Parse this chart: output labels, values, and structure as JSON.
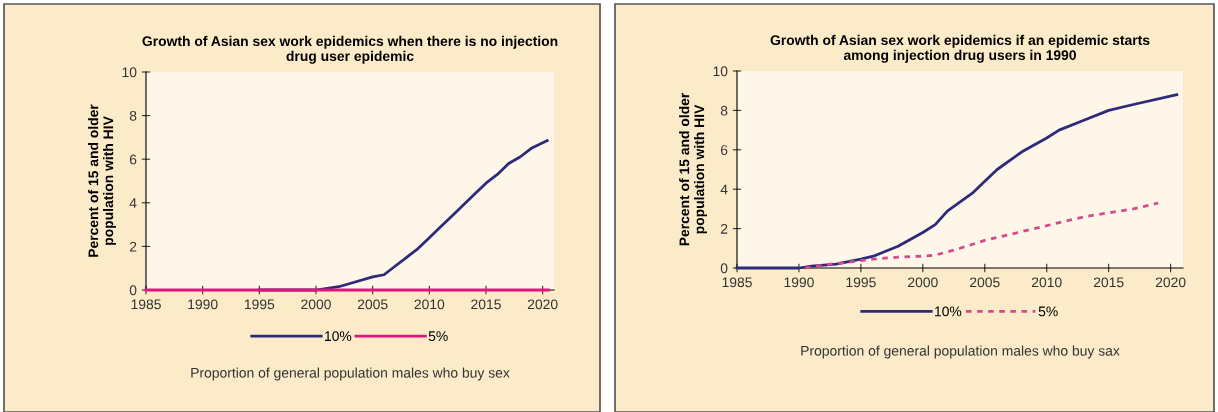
{
  "chart_data": [
    {
      "type": "line",
      "title": "Growth of Asian sex work epidemics when there is no injection drug user epidemic",
      "xlabel": "Proportion of general population males who buy sex",
      "ylabel": "Percent of 15 and older population with HIV",
      "xlim": [
        1985,
        2021
      ],
      "xticks": [
        1985,
        1990,
        1995,
        2000,
        2005,
        2010,
        2015,
        2020
      ],
      "ylim": [
        0,
        10
      ],
      "yticks": [
        0,
        2,
        4,
        6,
        8,
        10
      ],
      "grid": false,
      "legend": "bottom",
      "series": [
        {
          "name": "10%",
          "color": "#2e2a7a",
          "line_style": "solid",
          "x": [
            1995,
            2000,
            2002,
            2003,
            2005,
            2006,
            2007,
            2008,
            2009,
            2010,
            2011,
            2012,
            2013,
            2014,
            2015,
            2016,
            2017,
            2018,
            2019,
            2020.4
          ],
          "values": [
            0,
            0,
            0.15,
            0.3,
            0.6,
            0.7,
            1.1,
            1.5,
            1.9,
            2.4,
            2.9,
            3.4,
            3.9,
            4.4,
            4.9,
            5.3,
            5.8,
            6.1,
            6.5,
            6.85
          ]
        },
        {
          "name": "5%",
          "color": "#e0157f",
          "line_style": "solid",
          "x": [
            1985,
            2000,
            2020.5
          ],
          "values": [
            0,
            0,
            0
          ]
        }
      ]
    },
    {
      "type": "line",
      "title": "Growth of Asian sex work epidemics if an epidemic starts among injection drug users in 1990",
      "xlabel": "Proportion of general population males who buy sax",
      "ylabel": "Percent of 15 and older population with HIV",
      "xlim": [
        1985,
        2021
      ],
      "xticks": [
        1985,
        1990,
        1995,
        2000,
        2005,
        2010,
        2015,
        2020
      ],
      "ylim": [
        0,
        10
      ],
      "yticks": [
        0,
        2,
        4,
        6,
        8,
        10
      ],
      "grid": false,
      "legend": "bottom",
      "series": [
        {
          "name": "10%",
          "color": "#2e2a7a",
          "line_style": "solid",
          "x": [
            1985,
            1990,
            1991,
            1993,
            1995,
            1996,
            1998,
            2000,
            2001,
            2002,
            2004,
            2005,
            2006,
            2008,
            2010,
            2011,
            2013,
            2015,
            2017,
            2020.5
          ],
          "values": [
            0,
            0,
            0.1,
            0.2,
            0.45,
            0.6,
            1.1,
            1.8,
            2.2,
            2.9,
            3.8,
            4.4,
            5.0,
            5.9,
            6.6,
            7.0,
            7.5,
            8.0,
            8.3,
            8.8
          ]
        },
        {
          "name": "5%",
          "color": "#d44a8c",
          "line_style": "dashed",
          "x": [
            1990.5,
            1992,
            1994,
            1996,
            1998,
            2000,
            2001,
            2003,
            2005,
            2007,
            2009,
            2011,
            2013,
            2015,
            2017,
            2019
          ],
          "values": [
            0,
            0.15,
            0.3,
            0.45,
            0.55,
            0.6,
            0.65,
            1.0,
            1.4,
            1.7,
            2.0,
            2.3,
            2.6,
            2.8,
            3.0,
            3.3
          ]
        }
      ]
    }
  ]
}
